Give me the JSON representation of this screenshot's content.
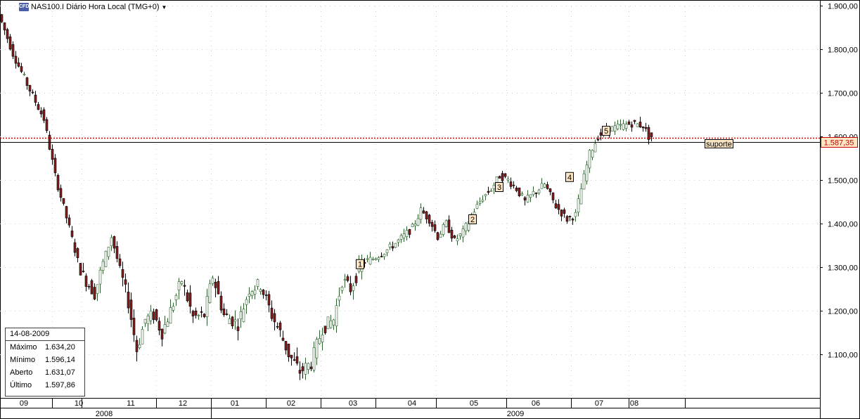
{
  "title": {
    "icon_text": "CFD",
    "text": "NAS100.I Diário Hora Local (TMG+0)"
  },
  "colors": {
    "up_candle": "#ffffff",
    "down_candle": "#8b1a1a",
    "outline": "#000000",
    "wick_up": "#2e5e2e",
    "resistance_line": "#cc0000",
    "support_line": "#000000",
    "label_fill": "#fde6c4"
  },
  "info_box": {
    "date": "14-08-2009",
    "rows": [
      {
        "label": "Máximo",
        "value": "1.634,20"
      },
      {
        "label": "Mínimo",
        "value": "1.596,14"
      },
      {
        "label": "Aberto",
        "value": "1.631,07"
      },
      {
        "label": "Último",
        "value": "1.597,86"
      }
    ]
  },
  "chart_data": {
    "type": "candlestick",
    "y_ticks": [
      "1.900,00",
      "1.800,00",
      "1.700,00",
      "1.600,00",
      "1.500,00",
      "1.400,00",
      "1.300,00",
      "1.200,00",
      "1.100,00"
    ],
    "y_range": [
      1000,
      1910
    ],
    "months": [
      "09",
      "10",
      "11",
      "12",
      "01",
      "02",
      "03",
      "04",
      "05",
      "06",
      "07",
      "08"
    ],
    "years": [
      "2008",
      "2009"
    ],
    "price_label": "1.587,35",
    "support_label": "suporte",
    "support_level": 1587.35,
    "resistance_level": 1597,
    "wave_labels": [
      {
        "text": "1",
        "x_day": 255,
        "y": 1307
      },
      {
        "text": "2",
        "x_day": 335,
        "y": 1410
      },
      {
        "text": "3",
        "x_day": 354,
        "y": 1484
      },
      {
        "text": "4",
        "x_day": 404,
        "y": 1507
      },
      {
        "text": "5",
        "x_day": 430,
        "y": 1613
      }
    ],
    "price_path_days": [
      0,
      10,
      20,
      32,
      40,
      50,
      58,
      68,
      75,
      80,
      92,
      98,
      104,
      110,
      116,
      122,
      130,
      138,
      146,
      152,
      160,
      170,
      178,
      186,
      194,
      200,
      206,
      214,
      222,
      230,
      238,
      244,
      250,
      258,
      266,
      276,
      284,
      294,
      300,
      306,
      312,
      318,
      324,
      330,
      336,
      344,
      350,
      356,
      362,
      368,
      374,
      380,
      388,
      396,
      404,
      410,
      414,
      420,
      426,
      432,
      438,
      444,
      450,
      458,
      462
    ],
    "price_path_values": [
      1880,
      1790,
      1720,
      1640,
      1510,
      1390,
      1290,
      1240,
      1320,
      1370,
      1220,
      1110,
      1180,
      1190,
      1150,
      1200,
      1270,
      1185,
      1190,
      1280,
      1190,
      1170,
      1250,
      1260,
      1190,
      1150,
      1100,
      1060,
      1080,
      1160,
      1180,
      1270,
      1250,
      1310,
      1320,
      1340,
      1360,
      1390,
      1430,
      1410,
      1370,
      1400,
      1360,
      1380,
      1420,
      1460,
      1480,
      1510,
      1500,
      1480,
      1450,
      1470,
      1490,
      1440,
      1410,
      1420,
      1480,
      1560,
      1600,
      1615,
      1620,
      1625,
      1630,
      1625,
      1600
    ]
  }
}
